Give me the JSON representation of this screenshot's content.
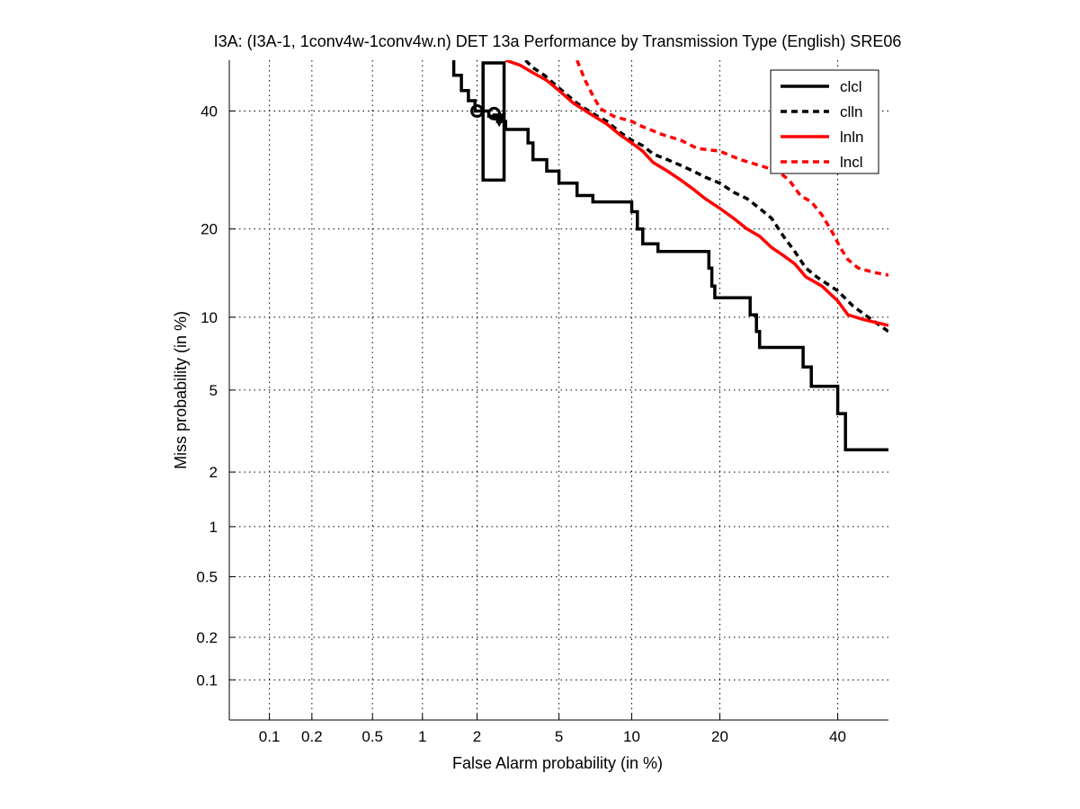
{
  "chart_data": {
    "type": "line",
    "title": "I3A: (I3A-1, 1conv4w-1conv4w.n) DET 13a Performance by Transmission Type (English) SRE06",
    "xlabel": "False Alarm probability (in %)",
    "ylabel": "Miss probability (in %)",
    "xscale": "normal-deviate (probit)",
    "yscale": "normal-deviate (probit)",
    "xlim": [
      0.05,
      50
    ],
    "ylim": [
      0.05,
      50
    ],
    "x_ticks": [
      {
        "value": 0.1,
        "label": "0.1"
      },
      {
        "value": 0.2,
        "label": "0.2"
      },
      {
        "value": 0.5,
        "label": "0.5"
      },
      {
        "value": 1,
        "label": "1"
      },
      {
        "value": 2,
        "label": "2"
      },
      {
        "value": 5,
        "label": "5"
      },
      {
        "value": 10,
        "label": "10"
      },
      {
        "value": 20,
        "label": "20"
      },
      {
        "value": 40,
        "label": "40"
      }
    ],
    "y_ticks": [
      {
        "value": 0.1,
        "label": "0.1"
      },
      {
        "value": 0.2,
        "label": "0.2"
      },
      {
        "value": 0.5,
        "label": "0.5"
      },
      {
        "value": 1,
        "label": "1"
      },
      {
        "value": 2,
        "label": "2"
      },
      {
        "value": 5,
        "label": "5"
      },
      {
        "value": 10,
        "label": "10"
      },
      {
        "value": 20,
        "label": "20"
      },
      {
        "value": 40,
        "label": "40"
      }
    ],
    "grid": true,
    "legend_position": "top-right",
    "series": [
      {
        "name": "clcl",
        "color": "#000000",
        "dash": "solid",
        "points": [
          [
            1.5,
            50
          ],
          [
            1.5,
            47
          ],
          [
            1.65,
            47
          ],
          [
            1.65,
            44
          ],
          [
            1.8,
            44
          ],
          [
            1.8,
            42
          ],
          [
            1.95,
            42
          ],
          [
            1.95,
            40
          ],
          [
            2.3,
            40
          ],
          [
            2.3,
            39
          ],
          [
            2.55,
            39
          ],
          [
            2.55,
            38
          ],
          [
            2.8,
            38
          ],
          [
            2.8,
            36.5
          ],
          [
            3.6,
            36.5
          ],
          [
            3.6,
            34
          ],
          [
            3.8,
            34
          ],
          [
            3.8,
            31
          ],
          [
            4.4,
            31
          ],
          [
            4.4,
            29
          ],
          [
            5.0,
            29
          ],
          [
            5.0,
            27
          ],
          [
            6.0,
            27
          ],
          [
            6.0,
            25
          ],
          [
            7.0,
            25
          ],
          [
            7.0,
            24
          ],
          [
            10.0,
            24
          ],
          [
            10.0,
            22.5
          ],
          [
            10.5,
            22.5
          ],
          [
            10.5,
            20
          ],
          [
            11.0,
            20
          ],
          [
            11.0,
            18
          ],
          [
            12.5,
            18
          ],
          [
            12.5,
            17
          ],
          [
            18.5,
            17
          ],
          [
            18.5,
            15
          ],
          [
            18.9,
            15
          ],
          [
            18.9,
            13
          ],
          [
            19.3,
            13
          ],
          [
            19.3,
            11.8
          ],
          [
            24.5,
            11.8
          ],
          [
            24.5,
            10.2
          ],
          [
            25.5,
            10.2
          ],
          [
            25.5,
            8.8
          ],
          [
            26.0,
            8.8
          ],
          [
            26.0,
            7.6
          ],
          [
            33.5,
            7.6
          ],
          [
            33.5,
            6.3
          ],
          [
            35.0,
            6.3
          ],
          [
            35.0,
            5.2
          ],
          [
            40.0,
            5.2
          ],
          [
            40.0,
            3.9
          ],
          [
            41.5,
            3.9
          ],
          [
            41.5,
            2.6
          ],
          [
            50,
            2.6
          ]
        ],
        "marker": {
          "fa": 2.0,
          "miss": 40,
          "shape": "circle"
        }
      },
      {
        "name": "clln",
        "color": "#000000",
        "dash": "dashed",
        "points": [
          [
            3.5,
            50
          ],
          [
            3.8,
            48.5
          ],
          [
            4.3,
            47
          ],
          [
            5.0,
            44.5
          ],
          [
            6.0,
            41.5
          ],
          [
            7.0,
            39.5
          ],
          [
            8.0,
            38
          ],
          [
            9.0,
            36
          ],
          [
            10.0,
            34.5
          ],
          [
            11.0,
            33.5
          ],
          [
            12.0,
            32
          ],
          [
            13.5,
            31
          ],
          [
            15.0,
            30
          ],
          [
            16.5,
            29
          ],
          [
            18.0,
            28
          ],
          [
            20.0,
            27
          ],
          [
            22.0,
            25.5
          ],
          [
            24.0,
            24.5
          ],
          [
            26.0,
            23
          ],
          [
            28.0,
            21.5
          ],
          [
            30.0,
            19
          ],
          [
            32.0,
            17
          ],
          [
            34.0,
            15
          ],
          [
            36.0,
            14
          ],
          [
            40.0,
            12.5
          ],
          [
            43.0,
            11
          ],
          [
            46.0,
            10
          ],
          [
            50,
            8.8
          ]
        ],
        "marker": {
          "fa": 2.6,
          "miss": 38.5,
          "shape": "triangle-down"
        }
      },
      {
        "name": "lnln",
        "color": "#ff0000",
        "dash": "solid",
        "points": [
          [
            2.8,
            50
          ],
          [
            3.3,
            49
          ],
          [
            3.8,
            47.5
          ],
          [
            4.4,
            46
          ],
          [
            5.0,
            44
          ],
          [
            5.8,
            41.5
          ],
          [
            6.8,
            39.5
          ],
          [
            8.0,
            37.5
          ],
          [
            9.0,
            35.5
          ],
          [
            10.0,
            34
          ],
          [
            11.0,
            32.5
          ],
          [
            12.0,
            30.5
          ],
          [
            13.5,
            29
          ],
          [
            15.0,
            27.5
          ],
          [
            16.5,
            26
          ],
          [
            18.0,
            24.5
          ],
          [
            20.0,
            23
          ],
          [
            22.0,
            21.5
          ],
          [
            24.0,
            20
          ],
          [
            26.0,
            19
          ],
          [
            28.0,
            17.5
          ],
          [
            30.0,
            16.5
          ],
          [
            32.0,
            15.5
          ],
          [
            34.0,
            14
          ],
          [
            37.0,
            13
          ],
          [
            40.0,
            11.5
          ],
          [
            42.0,
            10.2
          ],
          [
            45.0,
            9.8
          ],
          [
            50,
            9.3
          ]
        ],
        "marker": {
          "fa": 2.45,
          "miss": 39.5,
          "shape": "circle"
        }
      },
      {
        "name": "lncl",
        "color": "#ff0000",
        "dash": "dashed",
        "points": [
          [
            6.0,
            50
          ],
          [
            6.5,
            46
          ],
          [
            7.0,
            43
          ],
          [
            7.5,
            40.5
          ],
          [
            8.5,
            39
          ],
          [
            10.0,
            38
          ],
          [
            11.0,
            37
          ],
          [
            13.0,
            35.5
          ],
          [
            15.0,
            34.5
          ],
          [
            17.0,
            33
          ],
          [
            20.0,
            32.5
          ],
          [
            23.0,
            31
          ],
          [
            26.0,
            30
          ],
          [
            29.0,
            29
          ],
          [
            31.0,
            27.5
          ],
          [
            33.0,
            25
          ],
          [
            35.0,
            24
          ],
          [
            37.0,
            22
          ],
          [
            39.0,
            19.5
          ],
          [
            40.5,
            17.5
          ],
          [
            42.0,
            16
          ],
          [
            44.0,
            15
          ],
          [
            47.0,
            14.5
          ],
          [
            50,
            14.2
          ]
        ]
      }
    ],
    "confidence_box": {
      "fa_min": 2.15,
      "fa_max": 2.75,
      "miss_min": 27.5,
      "miss_max": 50
    }
  }
}
